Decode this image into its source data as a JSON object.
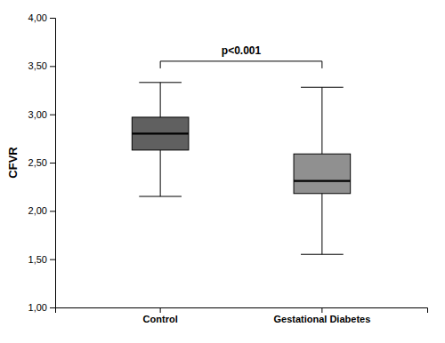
{
  "chart_data": {
    "type": "box",
    "categories": [
      "Control",
      "Gestational Diabetes"
    ],
    "boxes": [
      {
        "median": 2.8,
        "q1": 2.63,
        "q3": 2.97,
        "whisker_low": 2.15,
        "whisker_high": 3.33
      },
      {
        "median": 2.31,
        "q1": 2.18,
        "q3": 2.59,
        "whisker_low": 1.55,
        "whisker_high": 3.28
      }
    ],
    "colors": [
      "#606060",
      "#909090"
    ],
    "ylabel": "CFVR",
    "ylim": [
      1.0,
      4.0
    ],
    "yticks": [
      {
        "value": 1.0,
        "label": "1,00"
      },
      {
        "value": 1.5,
        "label": "1,50"
      },
      {
        "value": 2.0,
        "label": "2,00"
      },
      {
        "value": 2.5,
        "label": "2,50"
      },
      {
        "value": 3.0,
        "label": "3,00"
      },
      {
        "value": 3.5,
        "label": "3,50"
      },
      {
        "value": 4.0,
        "label": "4,00"
      }
    ],
    "annotations": [
      {
        "text": "p<0.001",
        "y": 3.6,
        "bracket_y": 3.55
      }
    ],
    "grid": false
  }
}
